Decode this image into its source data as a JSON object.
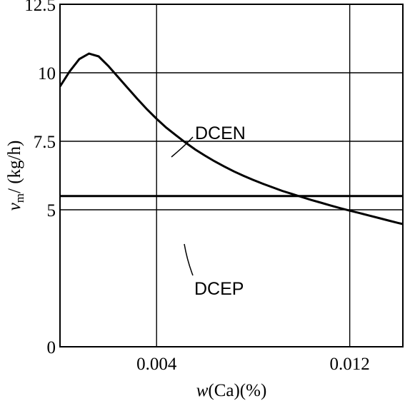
{
  "chart_data": {
    "type": "line",
    "title": "",
    "xlabel_italic": "w",
    "xlabel_rest": "(Ca)(%)",
    "ylabel_var": "v",
    "ylabel_sub": "m",
    "ylabel_unit": "/ (kg/h)",
    "xlim": [
      0,
      0.0142
    ],
    "ylim": [
      0,
      12.5
    ],
    "x_ticks": [
      0.004,
      0.012
    ],
    "x_tick_labels": [
      "0.004",
      "0.012"
    ],
    "y_ticks": [
      0,
      5,
      7.5,
      10,
      12.5
    ],
    "y_tick_labels": [
      "0",
      "5",
      "7.5",
      "10",
      "12.5"
    ],
    "grid": true,
    "series": [
      {
        "name": "DCEN",
        "x": [
          0.0,
          0.0004,
          0.0008,
          0.0012,
          0.0016,
          0.002,
          0.0024,
          0.0028,
          0.0032,
          0.0036,
          0.004,
          0.0044,
          0.0048,
          0.0052,
          0.0056,
          0.006,
          0.0064,
          0.0068,
          0.0072,
          0.0076,
          0.008,
          0.0084,
          0.0088,
          0.0092,
          0.0096,
          0.01,
          0.0104,
          0.0108,
          0.0112,
          0.0116,
          0.012,
          0.0124,
          0.0128,
          0.0132,
          0.0136,
          0.014,
          0.0142
        ],
        "y": [
          9.5,
          10.05,
          10.5,
          10.7,
          10.6,
          10.25,
          9.85,
          9.45,
          9.05,
          8.67,
          8.32,
          8.0,
          7.72,
          7.45,
          7.2,
          6.98,
          6.77,
          6.58,
          6.4,
          6.24,
          6.09,
          5.95,
          5.82,
          5.69,
          5.58,
          5.47,
          5.36,
          5.26,
          5.16,
          5.06,
          4.97,
          4.88,
          4.79,
          4.7,
          4.61,
          4.52,
          4.48
        ]
      },
      {
        "name": "DCEP",
        "x": [
          0.0,
          0.0142
        ],
        "y": [
          5.5,
          5.5
        ]
      }
    ]
  }
}
